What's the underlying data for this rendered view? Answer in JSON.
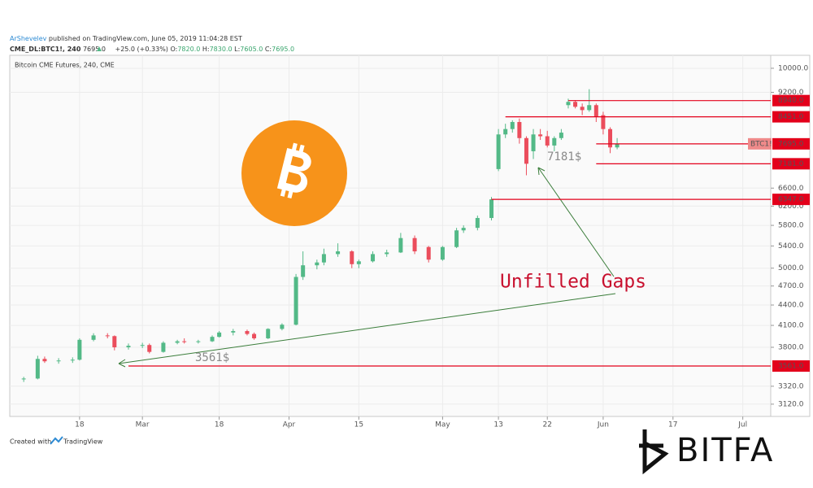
{
  "header": {
    "author": "ArShevelev",
    "published": "published on TradingView.com, June 05, 2019 11:04:28 EST",
    "symbol": "CME_DL:BTC1!, 240",
    "last": "7695.0",
    "change": "+25.0 (+0.33%)",
    "o_label": "O:",
    "o": "7820.0",
    "h_label": "H:",
    "h": "7830.0",
    "l_label": "L:",
    "l": "7605.0",
    "c_label": "C:",
    "c": "7695.0"
  },
  "chart_data": {
    "type": "candlestick",
    "title": "Bitcoin CME Futures, 240, CME",
    "log_scale": true,
    "grid": true,
    "up_color": "#53b987",
    "down_color": "#eb4d5c",
    "xlim": [
      "2019-02-04",
      "2019-07-05"
    ],
    "xticks": [
      {
        "value": "2019-02-18",
        "label": "18"
      },
      {
        "value": "2019-03-01",
        "label": "Mar"
      },
      {
        "value": "2019-03-18",
        "label": "18"
      },
      {
        "value": "2019-04-01",
        "label": "Apr"
      },
      {
        "value": "2019-04-15",
        "label": "15"
      },
      {
        "value": "2019-05-01",
        "label": "May"
      },
      {
        "value": "2019-05-13",
        "label": "13"
      },
      {
        "value": "2019-05-22",
        "label": "22"
      },
      {
        "value": "2019-06-01",
        "label": "Jun"
      },
      {
        "value": "2019-06-17",
        "label": "17"
      },
      {
        "value": "2019-07-01",
        "label": "Jul"
      }
    ],
    "ylim": [
      2990,
      10460
    ],
    "yticks": [
      {
        "value": 3120,
        "label": "3120.0"
      },
      {
        "value": 3320,
        "label": "3320.0"
      },
      {
        "value": 3800,
        "label": "3800.0"
      },
      {
        "value": 4100,
        "label": "4100.0"
      },
      {
        "value": 4400,
        "label": "4400.0"
      },
      {
        "value": 4700,
        "label": "4700.0"
      },
      {
        "value": 5000,
        "label": "5000.0"
      },
      {
        "value": 5400,
        "label": "5400.0"
      },
      {
        "value": 5800,
        "label": "5800.0"
      },
      {
        "value": 6200,
        "label": "6200.0"
      },
      {
        "value": 6600,
        "label": "6600.0"
      },
      {
        "value": 9200,
        "label": "9200.0"
      },
      {
        "value": 10000,
        "label": "10000.0"
      }
    ],
    "x": [
      "2019-02-06",
      "2019-02-08",
      "2019-02-11",
      "2019-02-13",
      "2019-02-15",
      "2019-02-18",
      "2019-02-20",
      "2019-02-22",
      "2019-02-25",
      "2019-02-27",
      "2019-03-01",
      "2019-03-04",
      "2019-03-06",
      "2019-03-08",
      "2019-03-11",
      "2019-03-13",
      "2019-03-15",
      "2019-03-18",
      "2019-03-20",
      "2019-03-22",
      "2019-03-25",
      "2019-03-27",
      "2019-03-29",
      "2019-04-02",
      "2019-04-03",
      "2019-04-05",
      "2019-04-08",
      "2019-04-10",
      "2019-04-12",
      "2019-04-15",
      "2019-04-17",
      "2019-04-19",
      "2019-04-23",
      "2019-04-25",
      "2019-04-29",
      "2019-05-01",
      "2019-05-03",
      "2019-05-06",
      "2019-05-08",
      "2019-05-10",
      "2019-05-13",
      "2019-05-14",
      "2019-05-15",
      "2019-05-16",
      "2019-05-17",
      "2019-05-20",
      "2019-05-21",
      "2019-05-22",
      "2019-05-23",
      "2019-05-24",
      "2019-05-27",
      "2019-05-28",
      "2019-05-29",
      "2019-05-30",
      "2019-05-31",
      "2019-06-03",
      "2019-06-04",
      "2019-06-05"
    ],
    "open": [
      3400,
      3410,
      3650,
      3620,
      3630,
      3640,
      3900,
      3960,
      3950,
      3800,
      3820,
      3830,
      3740,
      3860,
      3880,
      3870,
      3880,
      3940,
      4000,
      4020,
      3980,
      3920,
      4050,
      4110,
      4850,
      5050,
      5100,
      5250,
      5300,
      5070,
      5120,
      5250,
      5280,
      5550,
      5380,
      5150,
      5380,
      5700,
      5750,
      5950,
      7050,
      7950,
      8100,
      8300,
      7850,
      7500,
      7950,
      7900,
      7650,
      7850,
      8800,
      8900,
      8750,
      8650,
      8800,
      8500,
      8100,
      7600
    ],
    "high": [
      3430,
      3690,
      3680,
      3660,
      3670,
      3920,
      3990,
      3990,
      3960,
      3850,
      3860,
      3850,
      3880,
      3900,
      3920,
      3900,
      3960,
      4020,
      4050,
      4040,
      4000,
      4060,
      4130,
      4900,
      5300,
      5150,
      5350,
      5450,
      5320,
      5150,
      5300,
      5330,
      5650,
      5600,
      5400,
      5400,
      5750,
      5800,
      6000,
      6400,
      8100,
      8250,
      8350,
      8400,
      7900,
      8100,
      8100,
      8050,
      7900,
      8100,
      9000,
      8950,
      8850,
      9300,
      8850,
      8600,
      8150,
      7850
    ],
    "low": [
      3370,
      3400,
      3600,
      3590,
      3600,
      3630,
      3880,
      3920,
      3760,
      3770,
      3790,
      3720,
      3730,
      3840,
      3850,
      3850,
      3870,
      3930,
      3960,
      3960,
      3900,
      3910,
      4030,
      4100,
      4800,
      4980,
      5050,
      5200,
      5000,
      5000,
      5100,
      5200,
      5270,
      5250,
      5100,
      5130,
      5360,
      5650,
      5700,
      5900,
      7000,
      7850,
      8000,
      7700,
      6900,
      7300,
      7800,
      7600,
      7500,
      7800,
      8700,
      8700,
      8500,
      8600,
      8300,
      7950,
      7450,
      7550
    ],
    "close": [
      3410,
      3650,
      3620,
      3630,
      3640,
      3900,
      3960,
      3950,
      3800,
      3820,
      3830,
      3740,
      3860,
      3880,
      3870,
      3880,
      3940,
      4000,
      4020,
      3980,
      3920,
      4050,
      4110,
      4850,
      5050,
      5100,
      5250,
      5300,
      5070,
      5120,
      5250,
      5280,
      5550,
      5300,
      5150,
      5380,
      5700,
      5750,
      5950,
      6347,
      7950,
      8100,
      8300,
      7850,
      7181,
      7950,
      7900,
      7650,
      7850,
      8000,
      8900,
      8750,
      8650,
      8800,
      8450,
      8100,
      7600,
      7695
    ],
    "price_lines": [
      {
        "value": 8940,
        "label": "8940.0",
        "start": "2019-05-27",
        "color": "#e3001b"
      },
      {
        "value": 8451,
        "label": "8451.0",
        "start": "2019-05-14",
        "color": "#e3001b"
      },
      {
        "value": 7695,
        "label": "7695.0",
        "start": "2019-05-31",
        "color": "#e3001b",
        "tag": "BTC1!",
        "tag_color": "#ef8a8a"
      },
      {
        "value": 7181,
        "label": "7181.0",
        "start": "2019-05-31",
        "color": "#e3001b"
      },
      {
        "value": 6347,
        "label": "6347.0",
        "start": "2019-05-10",
        "color": "#e3001b"
      },
      {
        "value": 3561,
        "label": "3561.0",
        "start": "2019-02-27",
        "color": "#e3001b"
      }
    ],
    "annotations": [
      "Unfilled Gaps",
      "7181$",
      "3561$"
    ]
  },
  "footer": {
    "created": "Created with",
    "brand": "TradingView",
    "logo": "BITFA"
  }
}
